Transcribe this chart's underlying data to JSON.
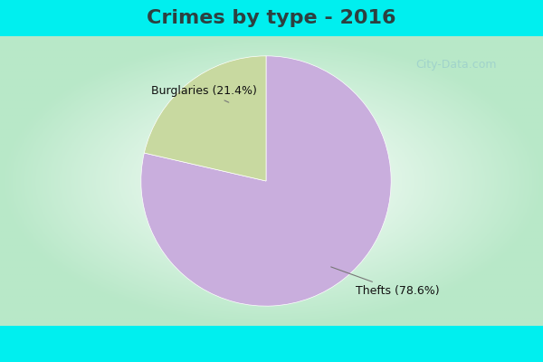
{
  "title": "Crimes by type - 2016",
  "slices": [
    {
      "label": "Thefts (78.6%)",
      "value": 78.6,
      "color": "#C9AEDD"
    },
    {
      "label": "Burglaries (21.4%)",
      "value": 21.4,
      "color": "#C8D9A0"
    }
  ],
  "cyan_bar_color": "#00EFEF",
  "bg_center_color": "#FFFFFF",
  "bg_edge_color": "#B8E8C8",
  "title_fontsize": 16,
  "title_color": "#2D4040",
  "label_fontsize": 9,
  "watermark": "City-Data.com",
  "cyan_bar_height": 0.1
}
